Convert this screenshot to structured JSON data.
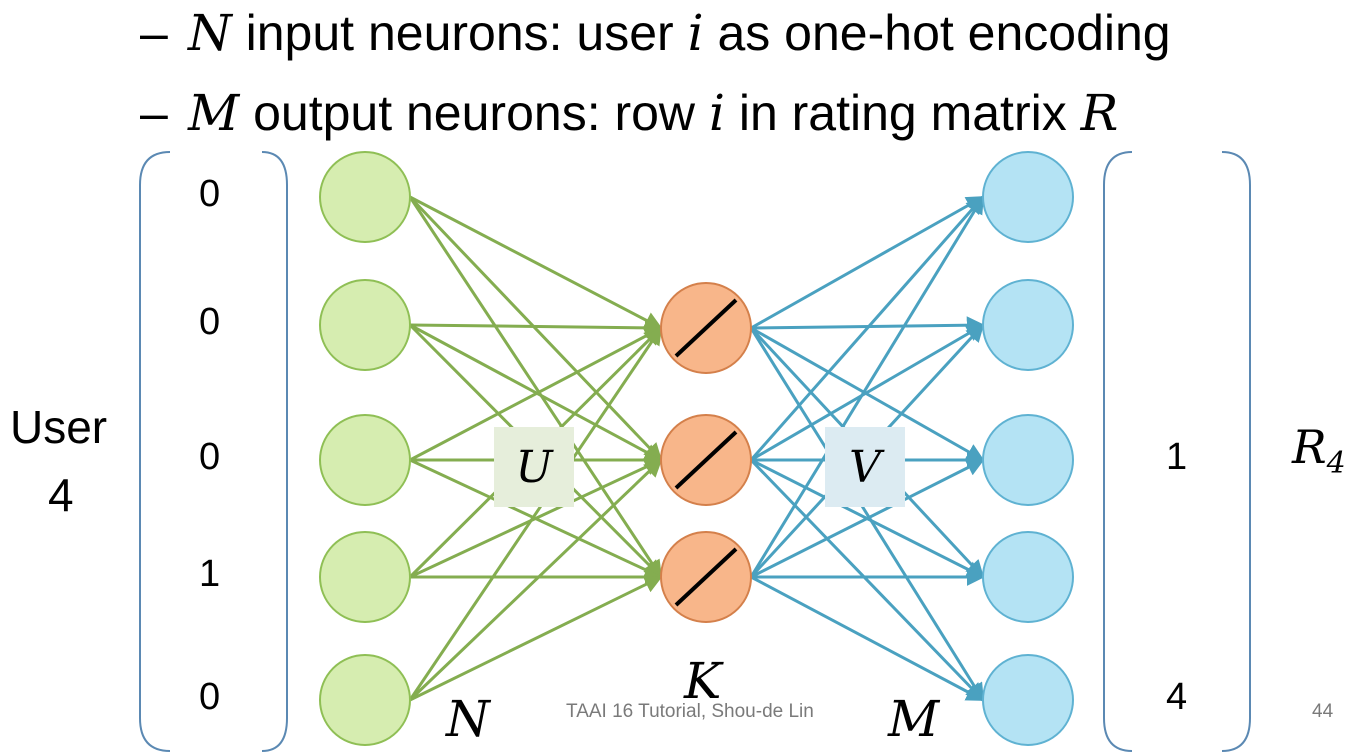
{
  "bullets": [
    {
      "dash": "–",
      "var": "N",
      "text1": " input neurons: user ",
      "var2": "i",
      "text2": " as one-hot encoding"
    },
    {
      "dash": "–",
      "var": "M",
      "text1": " output neurons: row ",
      "var2": "i",
      "text2": " in rating matrix ",
      "var3": "R"
    }
  ],
  "input_vector": [
    "0",
    "0",
    "0",
    "1",
    "0"
  ],
  "output_vector": [
    "",
    "",
    "1",
    "",
    "4"
  ],
  "user_label": {
    "line1": "User",
    "line2": "4"
  },
  "r_label": {
    "base": "R",
    "sub": "4"
  },
  "layer_labels": {
    "n": "N",
    "k": "K",
    "m": "M"
  },
  "weight_labels": {
    "u": "U",
    "v": "V"
  },
  "footer": "TAAI 16 Tutorial, Shou-de Lin",
  "page_number": "44",
  "colors": {
    "input_fill": "#d6edb0",
    "input_stroke": "#8fbf55",
    "hidden_fill": "#f8b68a",
    "hidden_stroke": "#d4804b",
    "output_fill": "#b4e3f4",
    "output_stroke": "#5fb2d2",
    "edge_green": "#84ad50",
    "edge_blue": "#4aa1c0",
    "u_box": "#e6eedb",
    "v_box": "#dcebf2",
    "bracket": "#5b89b3"
  }
}
